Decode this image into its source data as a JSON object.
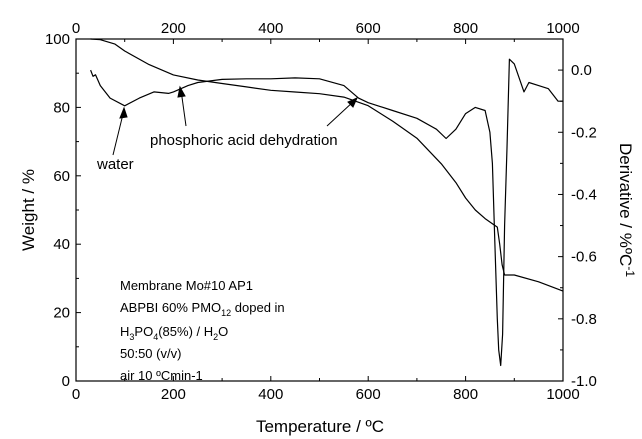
{
  "chart_data": {
    "type": "line",
    "xlabel": "Temperature / ºC",
    "ylabel_left": "Weight / %",
    "ylabel_right_main": "Derivative / %ºC",
    "ylabel_right_sup": "-1",
    "xlim": [
      0,
      1000
    ],
    "ylim_left": [
      0,
      100
    ],
    "ylim_right": [
      -1.0,
      0.1
    ],
    "x_ticks": [
      "0",
      "200",
      "400",
      "600",
      "800",
      "1000"
    ],
    "x_tick_values": [
      0,
      200,
      400,
      600,
      800,
      1000
    ],
    "y_left_ticks": [
      "0",
      "20",
      "40",
      "60",
      "80",
      "100"
    ],
    "y_left_tick_values": [
      0,
      20,
      40,
      60,
      80,
      100
    ],
    "y_right_ticks": [
      "-1.0",
      "-0.8",
      "-0.6",
      "-0.4",
      "-0.2",
      "0.0"
    ],
    "y_right_tick_values": [
      -1.0,
      -0.8,
      -0.6,
      -0.4,
      -0.2,
      0.0
    ],
    "grid": false,
    "series": [
      {
        "axis": "left",
        "x": [
          30,
          50,
          80,
          100,
          150,
          200,
          250,
          300,
          350,
          400,
          450,
          500,
          550,
          600,
          650,
          700,
          750,
          780,
          800,
          820,
          840,
          855,
          865,
          870,
          875,
          880,
          890,
          900,
          950,
          1000
        ],
        "y": [
          100,
          99.8,
          98.5,
          96.5,
          92.5,
          89.5,
          88,
          87,
          86,
          85,
          84.5,
          84,
          83,
          80.5,
          76,
          71,
          63.5,
          58,
          53.5,
          50,
          47.5,
          46,
          45,
          40,
          34,
          31,
          31,
          31,
          29,
          26.3
        ]
      },
      {
        "axis": "right",
        "x": [
          30,
          35,
          40,
          50,
          70,
          100,
          130,
          160,
          190,
          200,
          230,
          250,
          300,
          350,
          400,
          450,
          500,
          550,
          580,
          600,
          620,
          650,
          700,
          740,
          760,
          780,
          800,
          820,
          840,
          850,
          855,
          860,
          865,
          868,
          872,
          876,
          880,
          885,
          890,
          900,
          920,
          930,
          950,
          970,
          990,
          1000
        ],
        "y": [
          0.0,
          -0.02,
          -0.015,
          -0.05,
          -0.09,
          -0.115,
          -0.09,
          -0.07,
          -0.075,
          -0.07,
          -0.05,
          -0.04,
          -0.03,
          -0.028,
          -0.028,
          -0.025,
          -0.028,
          -0.05,
          -0.09,
          -0.105,
          -0.115,
          -0.13,
          -0.155,
          -0.19,
          -0.22,
          -0.19,
          -0.14,
          -0.12,
          -0.13,
          -0.2,
          -0.3,
          -0.55,
          -0.8,
          -0.9,
          -0.95,
          -0.85,
          -0.5,
          -0.25,
          0.035,
          0.02,
          -0.07,
          -0.04,
          -0.05,
          -0.06,
          -0.1,
          -0.1
        ]
      }
    ],
    "annotations": {
      "water": "water",
      "dehydration": "phosphoric acid dehydration"
    },
    "info": {
      "line1": "Membrane Mo#10 AP1",
      "line2_pre": "ABPBI 60% PMO",
      "line2_sub": "12",
      "line2_post": " doped in",
      "line3_a": "H",
      "line3_sub1": "3",
      "line3_b": "PO",
      "line3_sub2": "4",
      "line3_c": "(85%) / H",
      "line3_sub3": "2",
      "line3_d": "O",
      "line4": "50:50 (v/v)",
      "line5": "air 10 ºCmin-1"
    }
  }
}
